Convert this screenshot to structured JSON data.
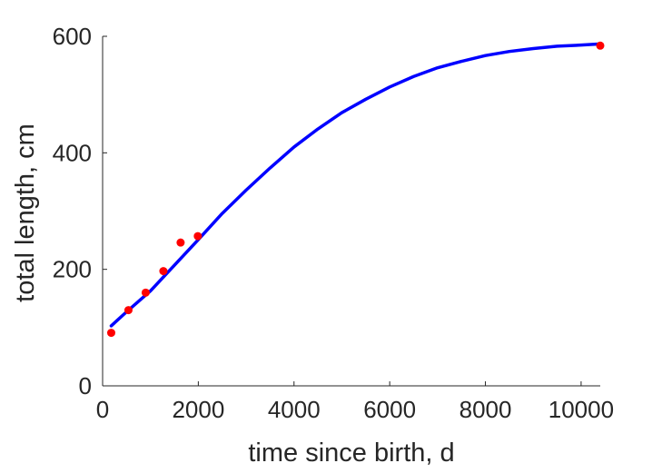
{
  "chart_data": {
    "type": "scatter",
    "title": "",
    "xlabel": "time since birth, d",
    "ylabel": "total length, cm",
    "xlim": [
      0,
      10400
    ],
    "ylim": [
      0,
      600
    ],
    "x_ticks": [
      0,
      2000,
      4000,
      6000,
      8000,
      10000
    ],
    "y_ticks": [
      0,
      200,
      400,
      600
    ],
    "grid": false,
    "legend": "none",
    "series": [
      {
        "kind": "scatter",
        "color": "#ff0000",
        "points": [
          {
            "x": 180,
            "y": 91
          },
          {
            "x": 540,
            "y": 130
          },
          {
            "x": 900,
            "y": 160
          },
          {
            "x": 1270,
            "y": 197
          },
          {
            "x": 1630,
            "y": 246
          },
          {
            "x": 1990,
            "y": 257
          },
          {
            "x": 10400,
            "y": 584
          }
        ]
      },
      {
        "kind": "line",
        "color": "#0000ff",
        "points": [
          {
            "x": 180,
            "y": 103
          },
          {
            "x": 500,
            "y": 127
          },
          {
            "x": 1000,
            "y": 163
          },
          {
            "x": 1500,
            "y": 207
          },
          {
            "x": 2000,
            "y": 251
          },
          {
            "x": 2500,
            "y": 296
          },
          {
            "x": 3000,
            "y": 336
          },
          {
            "x": 3500,
            "y": 374
          },
          {
            "x": 4000,
            "y": 410
          },
          {
            "x": 4500,
            "y": 441
          },
          {
            "x": 5000,
            "y": 469
          },
          {
            "x": 5500,
            "y": 492
          },
          {
            "x": 6000,
            "y": 513
          },
          {
            "x": 6500,
            "y": 531
          },
          {
            "x": 7000,
            "y": 546
          },
          {
            "x": 7500,
            "y": 557
          },
          {
            "x": 8000,
            "y": 567
          },
          {
            "x": 8500,
            "y": 574
          },
          {
            "x": 9000,
            "y": 579
          },
          {
            "x": 9500,
            "y": 583
          },
          {
            "x": 10000,
            "y": 585
          },
          {
            "x": 10400,
            "y": 587
          }
        ]
      }
    ]
  }
}
